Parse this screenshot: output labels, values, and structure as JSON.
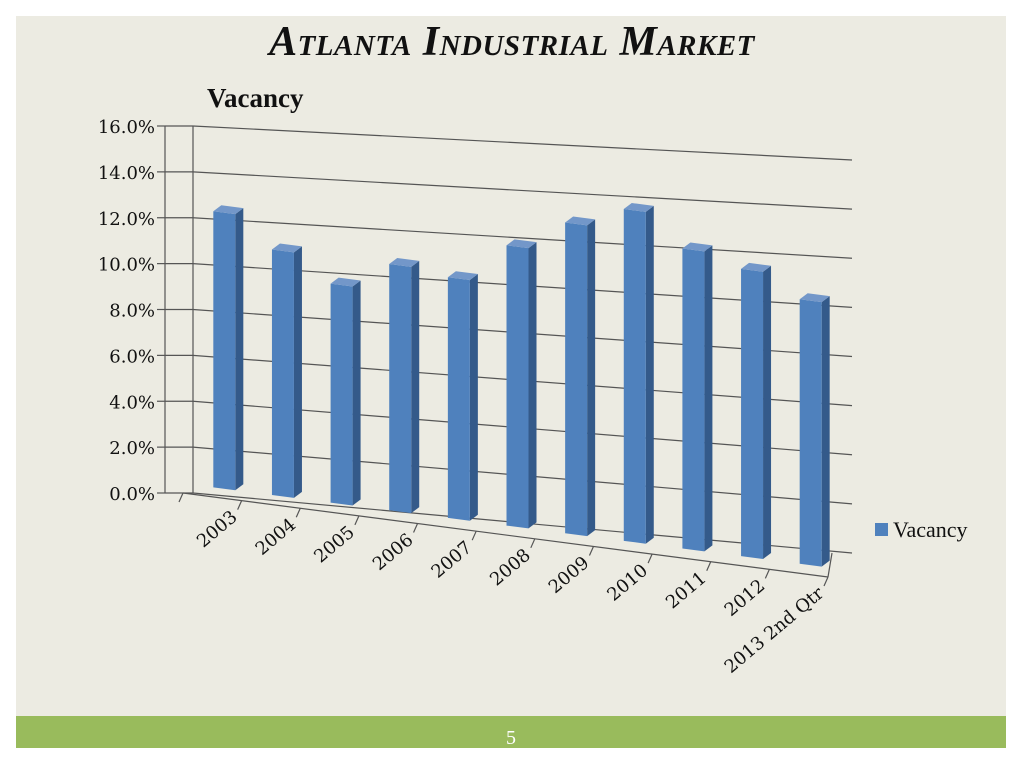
{
  "slide": {
    "title": "Atlanta Industrial Market",
    "page_number": "5"
  },
  "colors": {
    "background": "#ecebe2",
    "footer": "#99bb5c",
    "bar_front": "#4f81bd",
    "bar_side": "#345a8a",
    "bar_top": "#7397c9"
  },
  "chart_data": {
    "type": "bar",
    "title": "Vacancy",
    "categories": [
      "2003",
      "2004",
      "2005",
      "2006",
      "2007",
      "2008",
      "2009",
      "2010",
      "2011",
      "2012",
      "2013 2nd Qtr"
    ],
    "series": [
      {
        "name": "Vacancy",
        "values": [
          12.0,
          10.6,
          9.4,
          10.5,
          10.2,
          11.8,
          13.0,
          13.8,
          12.4,
          11.8,
          10.8
        ]
      }
    ],
    "y_tick_labels": [
      "0.0%",
      "2.0%",
      "4.0%",
      "6.0%",
      "8.0%",
      "10.0%",
      "12.0%",
      "14.0%",
      "16.0%"
    ],
    "ylim": [
      0,
      16
    ],
    "legend": "right",
    "grid": true
  }
}
